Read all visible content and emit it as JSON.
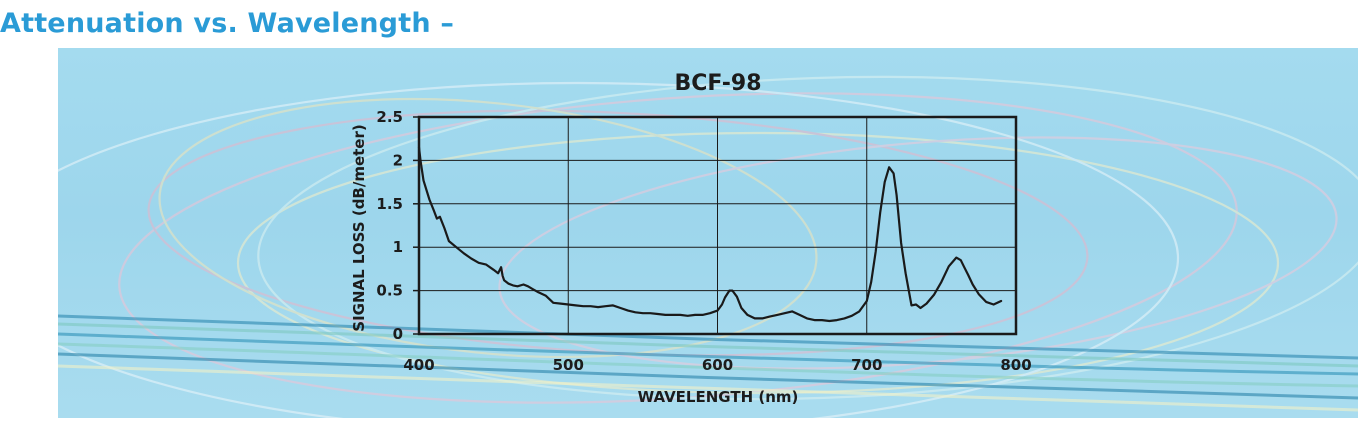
{
  "page": {
    "heading": "Attenuation vs. Wavelength –"
  },
  "colors": {
    "heading": "#2a9bd6",
    "panel_background": "#a4dbef",
    "line": "#1a1a1a",
    "grid": "#1a1a1a"
  },
  "chart_data": {
    "type": "line",
    "title": "BCF-98",
    "xlabel": "WAVELENGTH (nm)",
    "ylabel": "SIGNAL LOSS (dB/meter)",
    "xlim": [
      400,
      800
    ],
    "ylim": [
      0,
      2.5
    ],
    "x_ticks": [
      400,
      500,
      600,
      700,
      800
    ],
    "x_tick_labels": [
      "400",
      "500",
      "600",
      "700",
      "800"
    ],
    "y_ticks": [
      0,
      0.5,
      1,
      1.5,
      2,
      2.5
    ],
    "y_tick_labels": [
      "0",
      "0.5",
      "1",
      "1.5",
      "2",
      "2.5"
    ],
    "grid": true,
    "series": [
      {
        "x": [
          400,
          401,
          403,
          407,
          410,
          412,
          414,
          417,
          420,
          425,
          430,
          435,
          440,
          445,
          450,
          453,
          455,
          456,
          457,
          460,
          463,
          466,
          470,
          473,
          476,
          480,
          485,
          490,
          495,
          500,
          505,
          510,
          515,
          520,
          525,
          530,
          535,
          540,
          545,
          550,
          555,
          560,
          565,
          570,
          575,
          580,
          585,
          590,
          595,
          600,
          603,
          605,
          608,
          610,
          613,
          616,
          620,
          625,
          630,
          635,
          640,
          645,
          650,
          655,
          660,
          665,
          670,
          675,
          680,
          685,
          690,
          695,
          700,
          703,
          706,
          709,
          712,
          715,
          718,
          720,
          723,
          726,
          730,
          733,
          736,
          740,
          745,
          750,
          755,
          760,
          763,
          765,
          768,
          771,
          775,
          780,
          785,
          790
        ],
        "y": [
          2.15,
          2.0,
          1.77,
          1.55,
          1.42,
          1.33,
          1.35,
          1.22,
          1.07,
          1.0,
          0.93,
          0.87,
          0.82,
          0.8,
          0.74,
          0.7,
          0.77,
          0.67,
          0.62,
          0.58,
          0.56,
          0.55,
          0.57,
          0.55,
          0.52,
          0.48,
          0.44,
          0.36,
          0.35,
          0.34,
          0.33,
          0.32,
          0.32,
          0.31,
          0.32,
          0.33,
          0.3,
          0.27,
          0.25,
          0.24,
          0.24,
          0.23,
          0.22,
          0.22,
          0.22,
          0.21,
          0.22,
          0.22,
          0.24,
          0.27,
          0.34,
          0.42,
          0.5,
          0.5,
          0.43,
          0.3,
          0.22,
          0.18,
          0.18,
          0.2,
          0.22,
          0.24,
          0.26,
          0.22,
          0.18,
          0.16,
          0.16,
          0.15,
          0.16,
          0.18,
          0.21,
          0.26,
          0.38,
          0.6,
          0.95,
          1.4,
          1.75,
          1.92,
          1.85,
          1.6,
          1.05,
          0.7,
          0.33,
          0.34,
          0.3,
          0.35,
          0.45,
          0.6,
          0.78,
          0.88,
          0.85,
          0.78,
          0.68,
          0.57,
          0.46,
          0.37,
          0.34,
          0.38
        ]
      }
    ]
  }
}
